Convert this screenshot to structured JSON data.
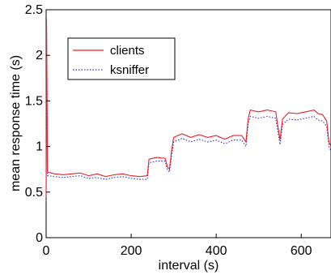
{
  "chart_data": {
    "type": "line",
    "title": "",
    "xlabel": "interval (s)",
    "ylabel": "mean response time (s)",
    "xlim": [
      0,
      670
    ],
    "ylim": [
      0,
      2.5
    ],
    "xticks": [
      "0",
      "200",
      "400",
      "600"
    ],
    "xtick_values": [
      0,
      200,
      400,
      600
    ],
    "yticks": [
      "0",
      "0.5",
      "1",
      "1.5",
      "2",
      "2.5"
    ],
    "ytick_values": [
      0,
      0.5,
      1,
      1.5,
      2,
      2.5
    ],
    "grid": false,
    "legend_position": "top-left",
    "series": [
      {
        "name": "clients",
        "color": "#e8202a",
        "style": "solid",
        "points": [
          [
            0,
            0.45
          ],
          [
            1,
            2.4
          ],
          [
            2,
            1.6
          ],
          [
            3,
            0.72
          ],
          [
            20,
            0.7
          ],
          [
            40,
            0.69
          ],
          [
            60,
            0.7
          ],
          [
            80,
            0.71
          ],
          [
            100,
            0.68
          ],
          [
            120,
            0.7
          ],
          [
            140,
            0.67
          ],
          [
            160,
            0.69
          ],
          [
            180,
            0.7
          ],
          [
            200,
            0.68
          ],
          [
            220,
            0.67
          ],
          [
            238,
            0.68
          ],
          [
            242,
            0.86
          ],
          [
            260,
            0.88
          ],
          [
            280,
            0.87
          ],
          [
            285,
            0.78
          ],
          [
            290,
            0.75
          ],
          [
            295,
            0.95
          ],
          [
            300,
            1.1
          ],
          [
            320,
            1.14
          ],
          [
            340,
            1.1
          ],
          [
            360,
            1.13
          ],
          [
            380,
            1.1
          ],
          [
            400,
            1.12
          ],
          [
            420,
            1.08
          ],
          [
            440,
            1.12
          ],
          [
            460,
            1.12
          ],
          [
            470,
            1.05
          ],
          [
            475,
            1.3
          ],
          [
            480,
            1.4
          ],
          [
            500,
            1.38
          ],
          [
            520,
            1.4
          ],
          [
            540,
            1.38
          ],
          [
            550,
            1.07
          ],
          [
            556,
            1.3
          ],
          [
            570,
            1.37
          ],
          [
            590,
            1.36
          ],
          [
            610,
            1.38
          ],
          [
            630,
            1.4
          ],
          [
            640,
            1.36
          ],
          [
            650,
            1.35
          ],
          [
            660,
            1.28
          ],
          [
            665,
            1.05
          ],
          [
            670,
            1.0
          ]
        ]
      },
      {
        "name": "ksniffer",
        "color": "#3333cc",
        "style": "dotted",
        "points": [
          [
            0,
            0.4
          ],
          [
            1,
            2.3
          ],
          [
            2,
            1.5
          ],
          [
            3,
            0.68
          ],
          [
            20,
            0.67
          ],
          [
            40,
            0.66
          ],
          [
            60,
            0.67
          ],
          [
            80,
            0.68
          ],
          [
            100,
            0.65
          ],
          [
            120,
            0.66
          ],
          [
            140,
            0.64
          ],
          [
            160,
            0.66
          ],
          [
            180,
            0.67
          ],
          [
            200,
            0.65
          ],
          [
            220,
            0.64
          ],
          [
            238,
            0.64
          ],
          [
            242,
            0.82
          ],
          [
            260,
            0.84
          ],
          [
            280,
            0.84
          ],
          [
            285,
            0.75
          ],
          [
            290,
            0.72
          ],
          [
            295,
            0.9
          ],
          [
            300,
            1.05
          ],
          [
            320,
            1.09
          ],
          [
            340,
            1.05
          ],
          [
            360,
            1.08
          ],
          [
            380,
            1.05
          ],
          [
            400,
            1.07
          ],
          [
            420,
            1.03
          ],
          [
            440,
            1.07
          ],
          [
            460,
            1.07
          ],
          [
            470,
            1.0
          ],
          [
            475,
            1.25
          ],
          [
            480,
            1.33
          ],
          [
            500,
            1.31
          ],
          [
            520,
            1.33
          ],
          [
            540,
            1.31
          ],
          [
            550,
            1.02
          ],
          [
            556,
            1.24
          ],
          [
            570,
            1.3
          ],
          [
            590,
            1.29
          ],
          [
            610,
            1.31
          ],
          [
            630,
            1.33
          ],
          [
            640,
            1.29
          ],
          [
            650,
            1.28
          ],
          [
            660,
            1.22
          ],
          [
            665,
            1.0
          ],
          [
            670,
            0.95
          ]
        ]
      }
    ]
  }
}
